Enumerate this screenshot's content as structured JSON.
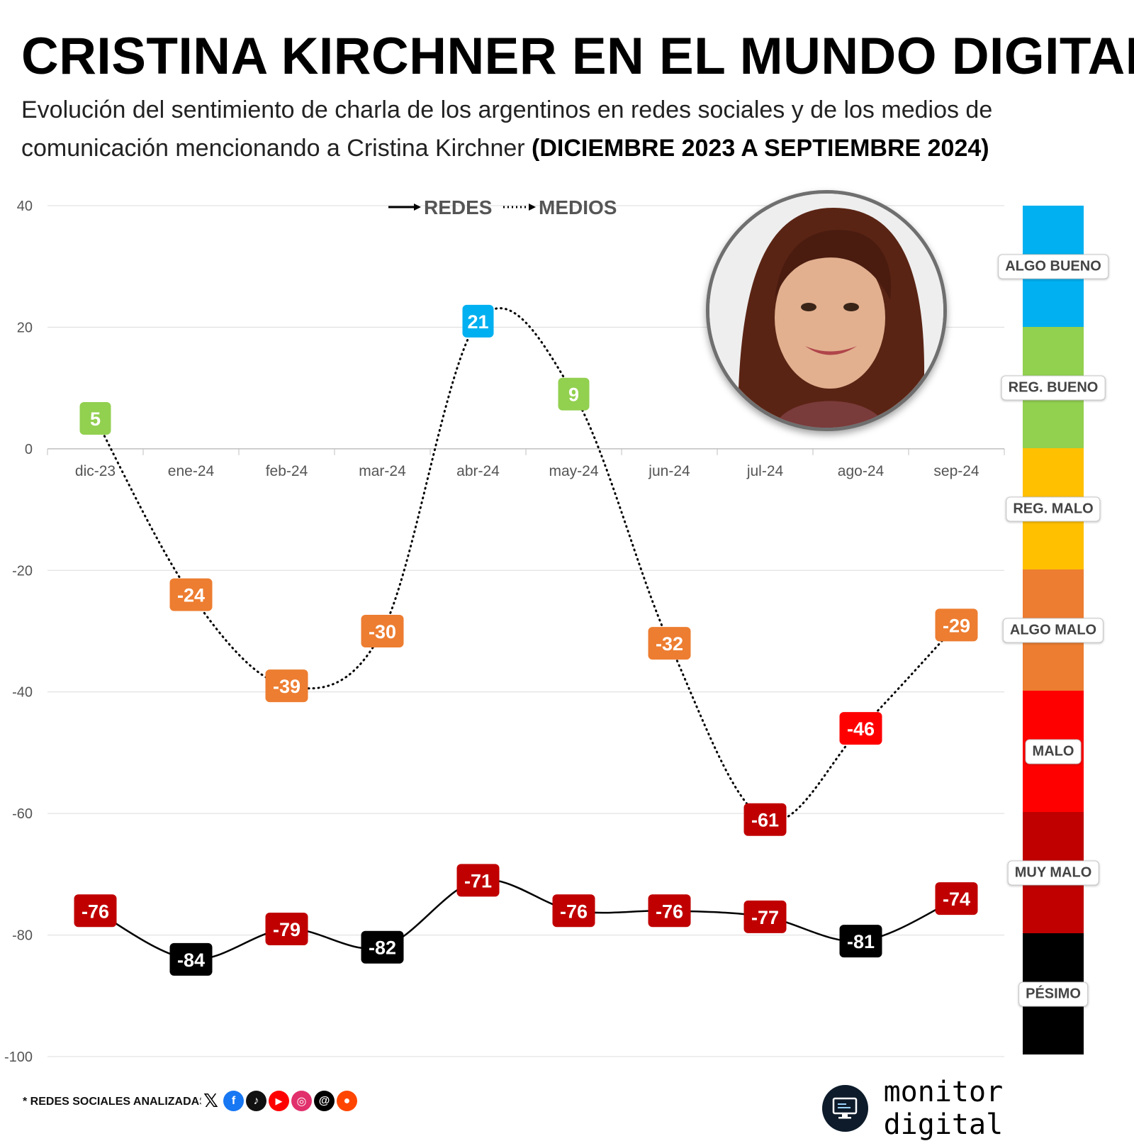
{
  "header": {
    "title": "CRISTINA KIRCHNER EN EL MUNDO DIGITAL",
    "subtitle_plain": "Evolución del sentimiento de charla de los argentinos en redes sociales y de los medios de comunicación mencionando a Cristina Kirchner",
    "subtitle_bold": "(DICIEMBRE 2023 A SEPTIEMBRE 2024)"
  },
  "chart_data": {
    "type": "line",
    "categories": [
      "dic-23",
      "ene-24",
      "feb-24",
      "mar-24",
      "abr-24",
      "may-24",
      "jun-24",
      "jul-24",
      "ago-24",
      "sep-24"
    ],
    "ylim": [
      -100,
      40
    ],
    "yticks": [
      40,
      20,
      0,
      -20,
      -40,
      -60,
      -80,
      -100
    ],
    "grid": true,
    "legend_placement": "top-center",
    "series": [
      {
        "name": "REDES",
        "line_style": "solid",
        "values": [
          -76,
          -84,
          -79,
          -82,
          -71,
          -76,
          -76,
          -77,
          -81,
          -74
        ]
      },
      {
        "name": "MEDIOS",
        "line_style": "dotted",
        "values": [
          5,
          -24,
          -39,
          -30,
          21,
          9,
          -32,
          -61,
          -46,
          -29
        ]
      }
    ],
    "sentiment_scale": [
      {
        "label": "ALGO BUENO",
        "min": 20,
        "max": 40,
        "color": "#00b0f0"
      },
      {
        "label": "REG. BUENO",
        "min": 0,
        "max": 20,
        "color": "#92d050"
      },
      {
        "label": "REG. MALO",
        "min": -20,
        "max": 0,
        "color": "#ffc000"
      },
      {
        "label": "ALGO MALO",
        "min": -40,
        "max": -20,
        "color": "#ed7d31"
      },
      {
        "label": "MALO",
        "min": -60,
        "max": -40,
        "color": "#ff0000"
      },
      {
        "label": "MUY MALO",
        "min": -80,
        "max": -60,
        "color": "#c00000"
      },
      {
        "label": "PÉSIMO",
        "min": -100,
        "max": -80,
        "color": "#000000"
      }
    ]
  },
  "footer": {
    "note": "* REDES SOCIALES ANALIZADAS",
    "social_icons": [
      "x-icon",
      "facebook-icon",
      "tiktok-icon",
      "youtube-icon",
      "instagram-icon",
      "threads-icon",
      "reddit-icon"
    ],
    "brand": "monitor digital"
  }
}
